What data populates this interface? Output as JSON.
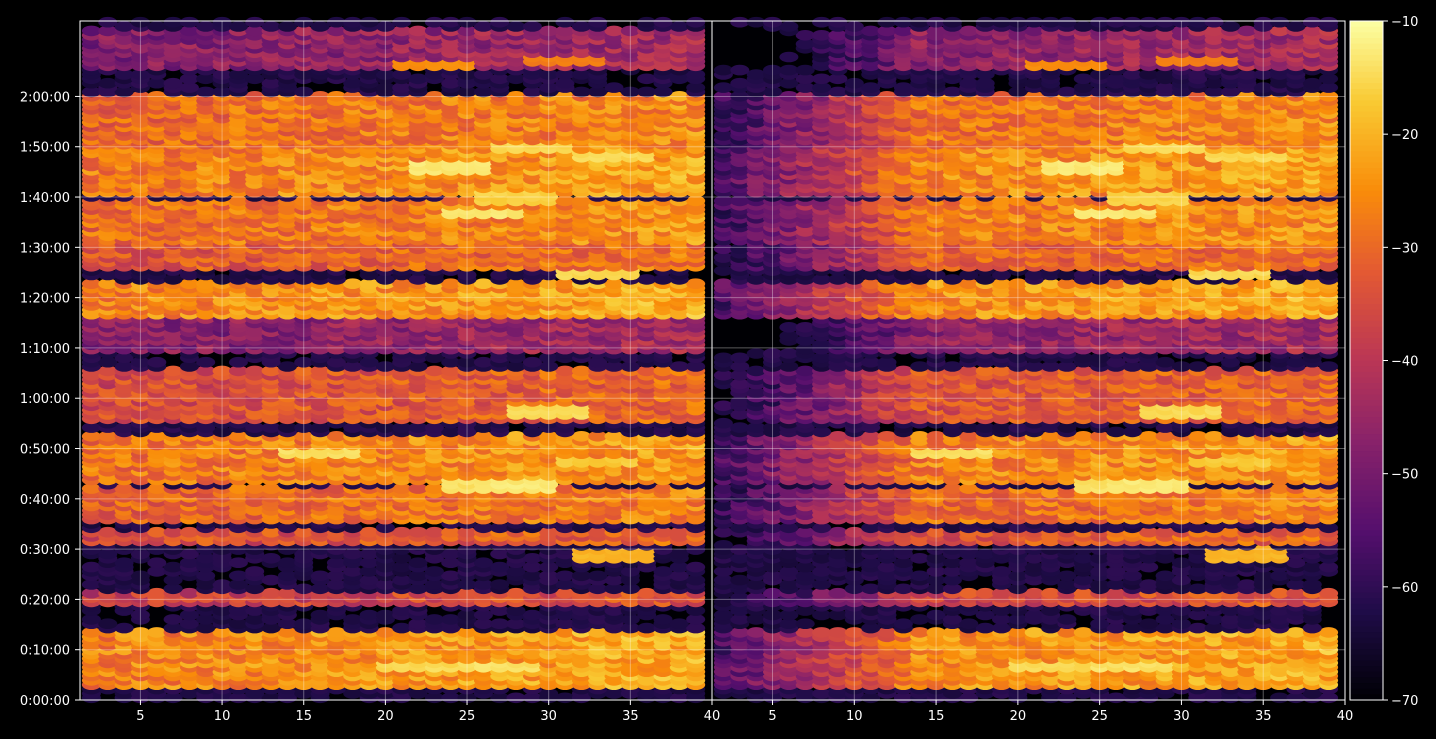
{
  "chart_data": {
    "type": "heatmap",
    "title": "",
    "xlabel": "",
    "ylabel": "",
    "grid": true,
    "background": "#000000",
    "colormap": "inferno",
    "colorbar": {
      "min": -70,
      "max": -10,
      "ticks": [
        -10,
        -20,
        -30,
        -40,
        -50,
        -60,
        -70
      ],
      "tick_labels": [
        "−10",
        "−20",
        "−30",
        "−40",
        "−50",
        "−60",
        "−70"
      ]
    },
    "y_axis": {
      "unit": "seconds",
      "range": [
        0,
        8100
      ],
      "ticks": [
        0,
        600,
        1200,
        1800,
        2400,
        3000,
        3600,
        4200,
        4800,
        5400,
        6000,
        6600,
        7200
      ],
      "tick_labels": [
        "0:00:00",
        "0:10:00",
        "0:20:00",
        "0:30:00",
        "0:40:00",
        "0:50:00",
        "1:00:00",
        "1:10:00",
        "1:20:00",
        "1:30:00",
        "1:40:00",
        "1:50:00",
        "2:00:00"
      ]
    },
    "panels": [
      {
        "x_range": [
          1.3,
          40
        ],
        "x_ticks": [
          5,
          10,
          15,
          20,
          25,
          30,
          35
        ],
        "x_tick_labels": [
          "5",
          "10",
          "15",
          "20",
          "25",
          "30",
          "35"
        ],
        "x_edge_label": "40",
        "channels": [
          2,
          39
        ]
      },
      {
        "x_range": [
          1.3,
          40
        ],
        "x_ticks": [
          5,
          10,
          15,
          20,
          25,
          30,
          35,
          40
        ],
        "x_tick_labels": [
          "5",
          "10",
          "15",
          "20",
          "25",
          "30",
          "35",
          "40"
        ],
        "channels": [
          2,
          39
        ],
        "attenuated_low_channels": true
      }
    ],
    "row_bands": [
      {
        "from": 150,
        "to": 850,
        "level": -24
      },
      {
        "from": 1150,
        "to": 1280,
        "level": -36
      },
      {
        "from": 1850,
        "to": 2050,
        "level": -33
      },
      {
        "from": 2150,
        "to": 2550,
        "level": -29
      },
      {
        "from": 2600,
        "to": 3150,
        "level": -26
      },
      {
        "from": 3350,
        "to": 3950,
        "level": -33
      },
      {
        "from": 4150,
        "to": 4550,
        "level": -46
      },
      {
        "from": 4600,
        "to": 5000,
        "level": -24
      },
      {
        "from": 5150,
        "to": 5450,
        "level": -31
      },
      {
        "from": 5450,
        "to": 6000,
        "level": -27
      },
      {
        "from": 6050,
        "to": 6600,
        "level": -25
      },
      {
        "from": 6600,
        "to": 7250,
        "level": -28
      },
      {
        "from": 7550,
        "to": 8000,
        "level": -46
      }
    ],
    "hotspots": [
      {
        "x": 22,
        "y": 410,
        "level": -16
      },
      {
        "x": 27,
        "y": 420,
        "level": -15
      },
      {
        "x": 16,
        "y": 2970,
        "level": -15
      },
      {
        "x": 28,
        "y": 2580,
        "level": -14
      },
      {
        "x": 26,
        "y": 2580,
        "level": -15
      },
      {
        "x": 30,
        "y": 3450,
        "level": -16
      },
      {
        "x": 33,
        "y": 2860,
        "level": -18
      },
      {
        "x": 34,
        "y": 1740,
        "level": -21
      },
      {
        "x": 26,
        "y": 5820,
        "level": -14
      },
      {
        "x": 24,
        "y": 6370,
        "level": -14
      },
      {
        "x": 28,
        "y": 6010,
        "level": -17
      },
      {
        "x": 33,
        "y": 5090,
        "level": -16
      },
      {
        "x": 34,
        "y": 6490,
        "level": -16
      },
      {
        "x": 29,
        "y": 6620,
        "level": -16
      },
      {
        "x": 23,
        "y": 7600,
        "level": -26
      },
      {
        "x": 31,
        "y": 7650,
        "level": -28
      }
    ]
  }
}
